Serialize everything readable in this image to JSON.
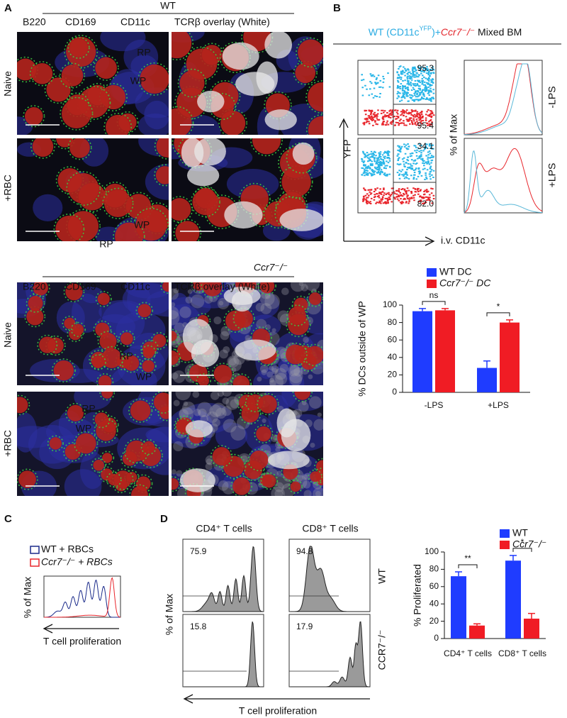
{
  "panel_a": {
    "label": "A",
    "wt_heading": "WT",
    "ko_heading": "Ccr7⁻/⁻",
    "stains": [
      "B220",
      "CD169",
      "CD11c",
      "TCRβ overlay (White)"
    ],
    "rows": [
      "Naive",
      "+RBC"
    ],
    "regions": [
      "RP",
      "WP"
    ]
  },
  "panel_b": {
    "label": "B",
    "title": [
      "WT (CD11c",
      "YFP",
      ")+",
      "Ccr7⁻/⁻",
      " Mixed BM"
    ],
    "y_label": "YFP",
    "x_label": "i.v. CD11c",
    "hist_label": "% of Max",
    "conditions": [
      "-LPS",
      "+LPS"
    ],
    "gates": [
      95.3,
      95.4,
      34.1,
      {
        "value": 82,
        "label": "82.0"
      }
    ]
  },
  "panel_c": {
    "label": "C",
    "legend": [
      "WT + RBCs",
      "Ccr7⁻/⁻ + RBCs"
    ],
    "y_label": "% of Max",
    "x_label": "T cell proliferation"
  },
  "panel_d": {
    "label": "D",
    "columns": [
      "CD4⁺ T cells",
      "CD8⁺ T cells"
    ],
    "rows": [
      "WT",
      "CCR7⁻/⁻"
    ],
    "y_label": "% of Max",
    "x_label": "T cell proliferation",
    "gates": [
      75.9,
      94.8,
      15.8,
      17.9
    ]
  },
  "chart_data": [
    {
      "type": "bar",
      "y_label": "% DCs outside of WP",
      "categories": [
        "-LPS",
        "+LPS"
      ],
      "series": [
        {
          "name": "WT DC",
          "color": "#1f3cff",
          "values": [
            93,
            28
          ],
          "errors": [
            3,
            8
          ]
        },
        {
          "name": "Ccr7⁻/⁻ DC",
          "color": "#f01c24",
          "values": [
            94,
            80
          ],
          "errors": [
            2,
            3
          ]
        }
      ],
      "ylim": [
        0,
        100
      ],
      "yticks": [
        0,
        20,
        40,
        60,
        80,
        100
      ],
      "annotations": [
        "ns",
        "*"
      ]
    },
    {
      "type": "bar",
      "y_label": "% Proliferated",
      "categories": [
        "CD4⁺ T cells",
        "CD8⁺ T cells"
      ],
      "series": [
        {
          "name": "WT",
          "color": "#1f3cff",
          "values": [
            72,
            90
          ],
          "errors": [
            5,
            6
          ]
        },
        {
          "name": "Ccr7⁻/⁻",
          "color": "#f01c24",
          "values": [
            15,
            23
          ],
          "errors": [
            2,
            6
          ]
        }
      ],
      "ylim": [
        0,
        100
      ],
      "yticks": [
        0,
        20,
        40,
        60,
        80,
        100
      ],
      "annotations": [
        "**",
        "*"
      ]
    }
  ]
}
